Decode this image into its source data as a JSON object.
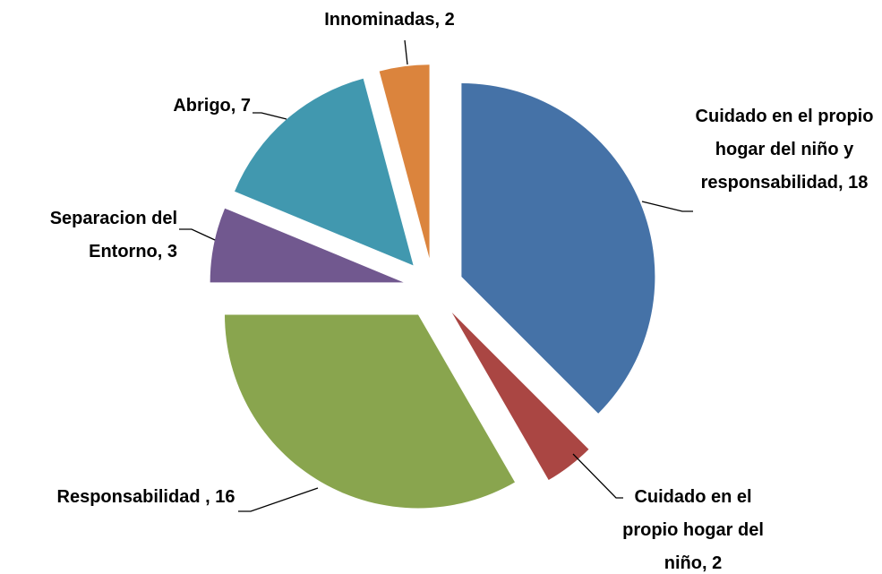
{
  "chart_data": {
    "type": "pie",
    "values": [
      18,
      2,
      16,
      3,
      7,
      2
    ],
    "value_labels": [
      "Cuidado en el propio hogar del niño y responsabilidad, 18",
      "Cuidado en el propio hogar del niño, 2",
      "Responsabilidad , 16",
      "Separacion del Entorno, 3",
      "Abrigo, 7",
      "Innominadas, 2"
    ],
    "colors": [
      "#4572a7",
      "#aa4643",
      "#89a54e",
      "#71588f",
      "#4198af",
      "#db843d"
    ],
    "exploded": true
  }
}
